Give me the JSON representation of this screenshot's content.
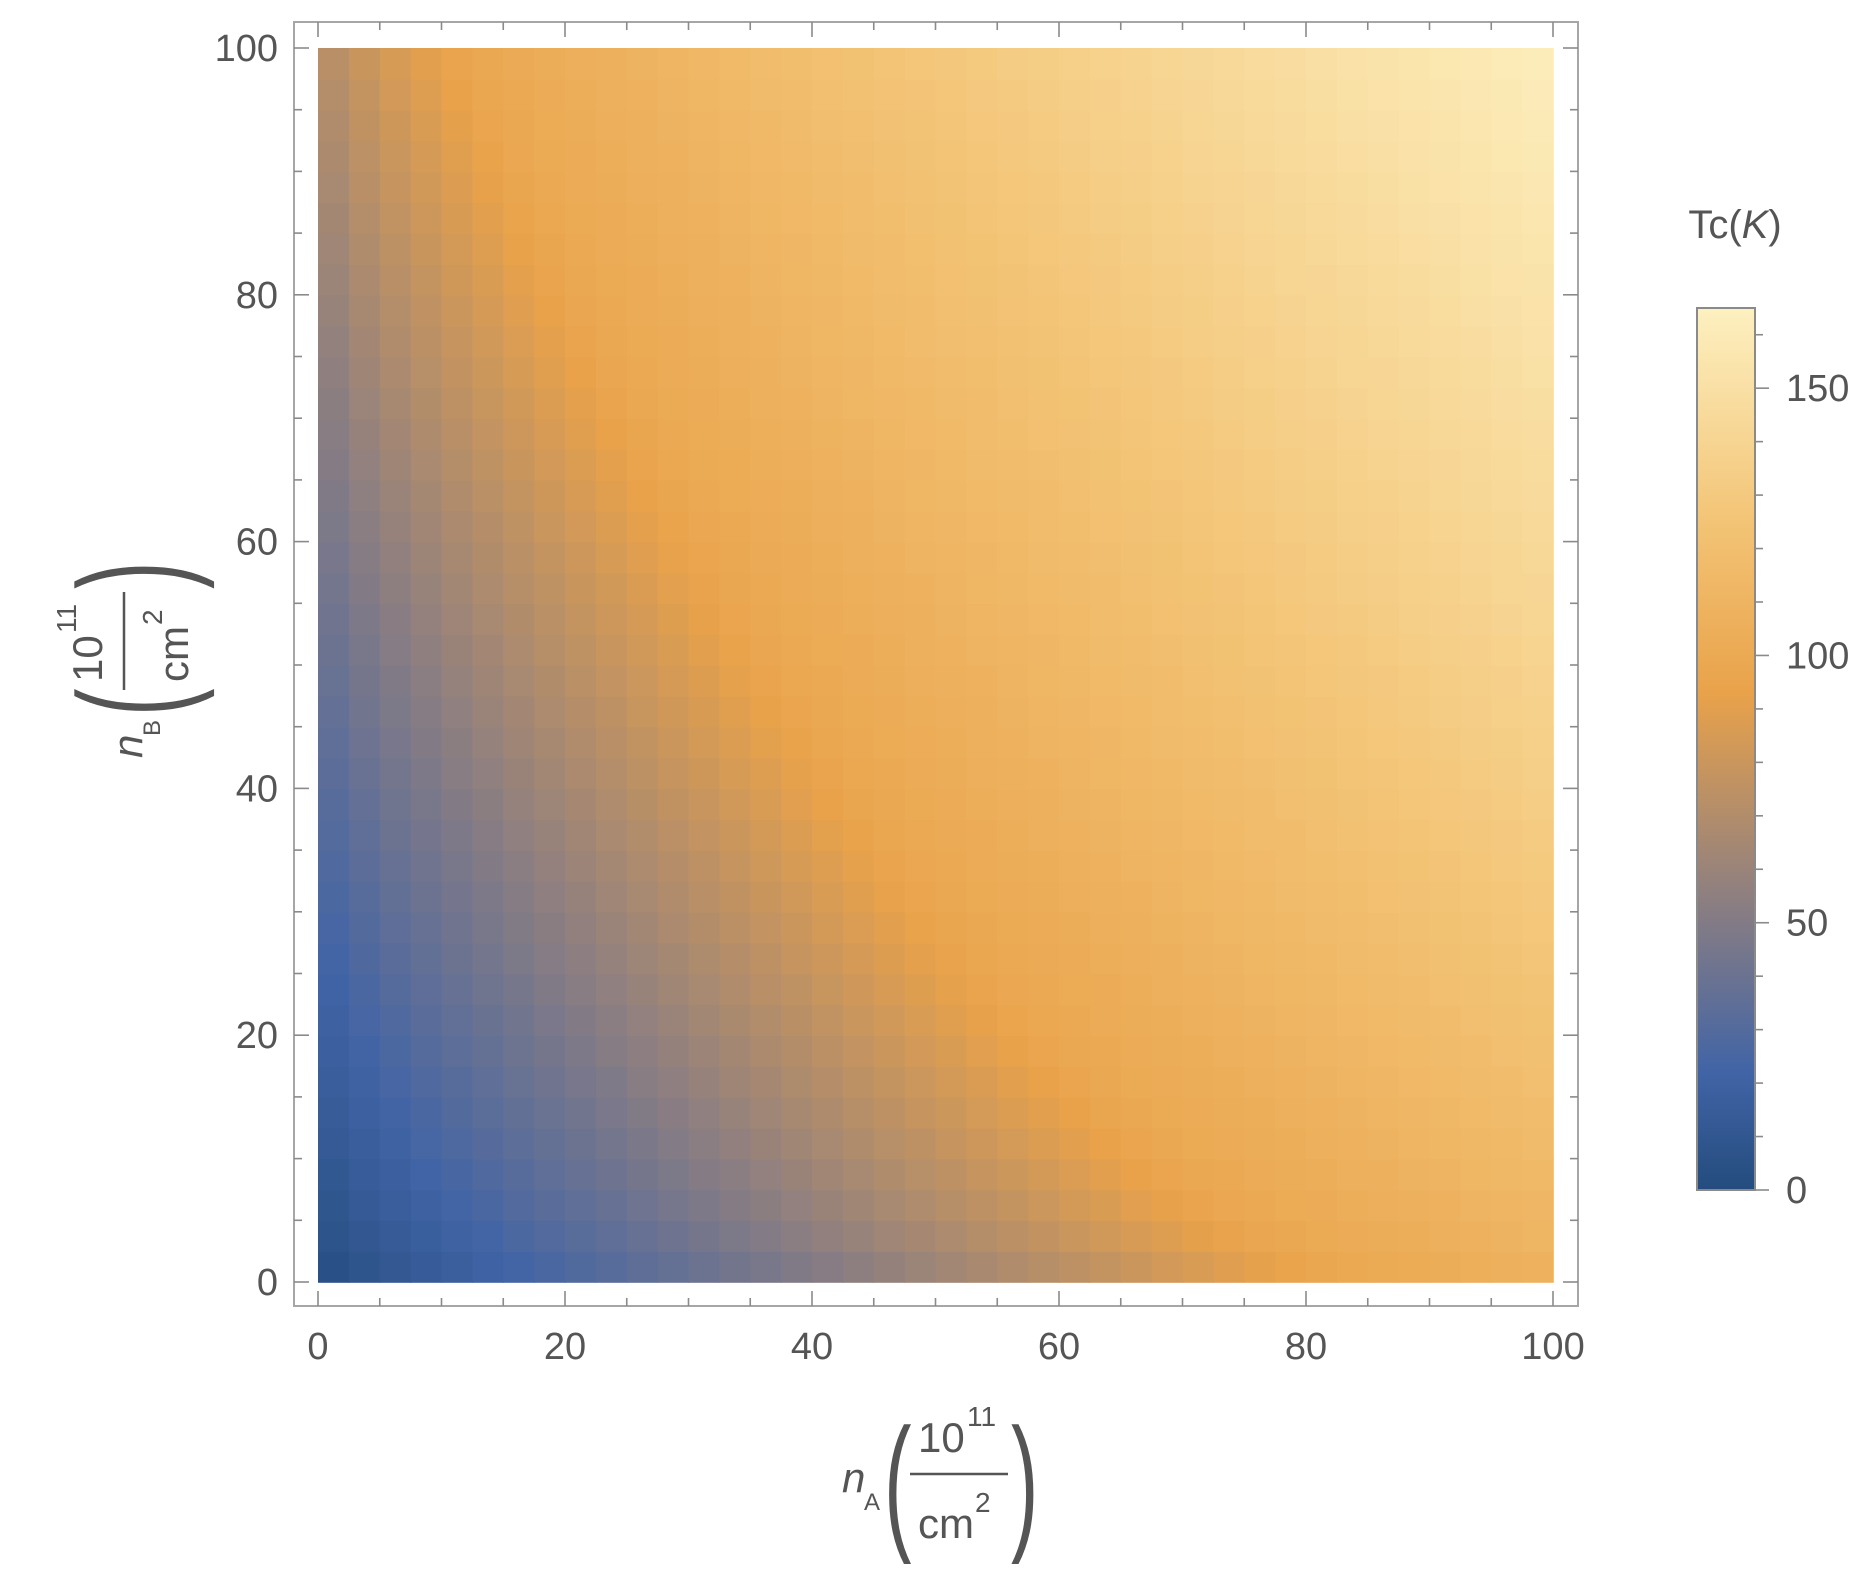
{
  "chart_data": {
    "type": "heatmap",
    "title": "",
    "x_axis": {
      "symbol": "n",
      "subscript": "A",
      "unit_numerator": "10",
      "unit_exponent": "11",
      "unit_denominator": "cm",
      "unit_denominator_exponent": "2",
      "range": [
        0,
        100
      ],
      "major_ticks": [
        0,
        20,
        40,
        60,
        80,
        100
      ],
      "tick_labels": [
        "0",
        "20",
        "40",
        "60",
        "80",
        "100"
      ]
    },
    "y_axis": {
      "symbol": "n",
      "subscript": "B",
      "unit_numerator": "10",
      "unit_exponent": "11",
      "unit_denominator": "cm",
      "unit_denominator_exponent": "2",
      "range": [
        0,
        100
      ],
      "major_ticks": [
        0,
        20,
        40,
        60,
        80,
        100
      ],
      "tick_labels": [
        "0",
        "20",
        "40",
        "60",
        "80",
        "100"
      ]
    },
    "colorbar": {
      "title_main": "Tc(",
      "title_var": "K",
      "title_close": ")",
      "range": [
        0,
        165
      ],
      "major_ticks": [
        0,
        50,
        100,
        150
      ],
      "tick_labels": [
        "0",
        "50",
        "100",
        "150"
      ],
      "gradient": [
        {
          "value": 0,
          "color": "#244c7e"
        },
        {
          "value": 22,
          "color": "#4164a6"
        },
        {
          "value": 55,
          "color": "#8e7f80"
        },
        {
          "value": 93,
          "color": "#e9a24a"
        },
        {
          "value": 125,
          "color": "#f3c476"
        },
        {
          "value": 165,
          "color": "#fdf0c0"
        }
      ]
    },
    "grid": false,
    "legend": "right"
  }
}
